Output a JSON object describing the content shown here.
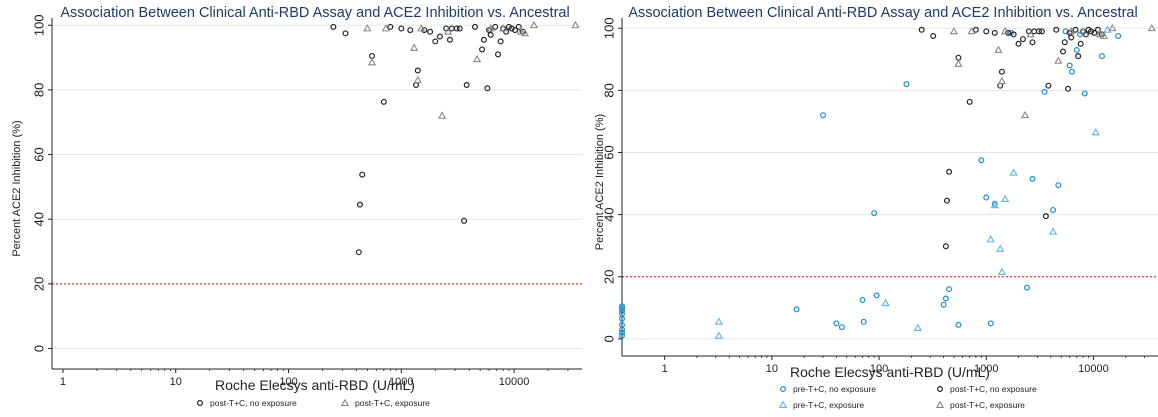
{
  "chart_data": [
    {
      "type": "scatter",
      "title": "Association Between Clinical Anti-RBD Assay and ACE2 Inhibition vs. Ancestral",
      "xlabel": "Roche Elecsys anti-RBD (U/mL)",
      "ylabel": "Percent ACE2 Inhibition (%)",
      "x_scale": "log",
      "xlim": [
        0.8,
        40000
      ],
      "ylim": [
        -2,
        101
      ],
      "x_ticks": [
        "1",
        "10",
        "100",
        "1000",
        "10000"
      ],
      "x_tick_values": [
        1,
        10,
        100,
        1000,
        10000
      ],
      "y_ticks": [
        "0",
        "20",
        "40",
        "60",
        "80",
        "100"
      ],
      "y_tick_values": [
        0,
        20,
        40,
        60,
        80,
        100
      ],
      "reference_line": {
        "y": 20,
        "color": "#e06060"
      },
      "grid": "horizontal",
      "legend": "bottom",
      "series": [
        {
          "name": "post-T+C, no exposure",
          "marker": "circle",
          "color": "#222222",
          "points": [
            [
              250,
              99.5
            ],
            [
              320,
              97.5
            ],
            [
              420,
              29.8
            ],
            [
              430,
              44.5
            ],
            [
              450,
              53.8
            ],
            [
              550,
              90.5
            ],
            [
              700,
              76.3
            ],
            [
              800,
              99.5
            ],
            [
              1000,
              99
            ],
            [
              1200,
              98.5
            ],
            [
              1350,
              81.5
            ],
            [
              1400,
              86
            ],
            [
              1600,
              98.5
            ],
            [
              1800,
              98
            ],
            [
              2000,
              95
            ],
            [
              2200,
              96.5
            ],
            [
              2500,
              99
            ],
            [
              2700,
              95.5
            ],
            [
              2800,
              99
            ],
            [
              3100,
              99
            ],
            [
              3300,
              99
            ],
            [
              3600,
              39.5
            ],
            [
              3800,
              81.5
            ],
            [
              4500,
              99.5
            ],
            [
              5200,
              92.5
            ],
            [
              5400,
              95.5
            ],
            [
              5800,
              80.5
            ],
            [
              6000,
              98.5
            ],
            [
              6200,
              97
            ],
            [
              6800,
              99.5
            ],
            [
              7200,
              91
            ],
            [
              7600,
              95
            ],
            [
              8000,
              99
            ],
            [
              8500,
              98
            ],
            [
              9000,
              99.5
            ],
            [
              9500,
              99
            ],
            [
              10200,
              98.5
            ],
            [
              11000,
              99.5
            ],
            [
              12000,
              98
            ]
          ]
        },
        {
          "name": "post-T+C, exposure",
          "marker": "triangle",
          "color": "#888888",
          "points": [
            [
              500,
              99
            ],
            [
              550,
              88.5
            ],
            [
              730,
              99
            ],
            [
              1300,
              93
            ],
            [
              1400,
              83
            ],
            [
              1500,
              99
            ],
            [
              2300,
              72
            ],
            [
              2600,
              98
            ],
            [
              4700,
              89.5
            ],
            [
              6200,
              99
            ],
            [
              8000,
              99
            ],
            [
              11500,
              98
            ],
            [
              12500,
              97.5
            ],
            [
              15000,
              100
            ],
            [
              35000,
              100
            ]
          ]
        }
      ],
      "legend_entries": [
        "post-T+C, no exposure",
        "post-T+C, exposure"
      ]
    },
    {
      "type": "scatter",
      "title": "Association Between Clinical Anti-RBD Assay and ACE2 Inhibition vs. Ancestral",
      "xlabel": "Roche Elecsys anti-RBD (U/mL)",
      "ylabel": "Percent ACE2 Inhibition (%)",
      "x_scale": "log",
      "xlim": [
        0.4,
        40000
      ],
      "ylim": [
        -1,
        102
      ],
      "x_ticks": [
        "1",
        "10",
        "100",
        "1000",
        "10000"
      ],
      "x_tick_values": [
        1,
        10,
        100,
        1000,
        10000
      ],
      "y_ticks": [
        "0",
        "20",
        "40",
        "60",
        "80",
        "100"
      ],
      "y_tick_values": [
        0,
        20,
        40,
        60,
        80,
        100
      ],
      "reference_line": {
        "y": 20,
        "color": "#e06060"
      },
      "grid": "horizontal",
      "legend": "bottom",
      "series": [
        {
          "name": "pre-T+C, no exposure",
          "marker": "circle",
          "color": "#1a8fd8",
          "points": [
            [
              0.4,
              10.5
            ],
            [
              0.4,
              9.8
            ],
            [
              0.4,
              9
            ],
            [
              0.4,
              8
            ],
            [
              0.4,
              6.5
            ],
            [
              0.4,
              4.5
            ],
            [
              0.4,
              3
            ],
            [
              0.4,
              2
            ],
            [
              0.4,
              1
            ],
            [
              17,
              9.5
            ],
            [
              30,
              72
            ],
            [
              40,
              5
            ],
            [
              45,
              3.8
            ],
            [
              70,
              12.5
            ],
            [
              72,
              5.5
            ],
            [
              90,
              40.5
            ],
            [
              95,
              14
            ],
            [
              180,
              82
            ],
            [
              400,
              11
            ],
            [
              420,
              13
            ],
            [
              450,
              16
            ],
            [
              550,
              4.5
            ],
            [
              900,
              57.5
            ],
            [
              1000,
              45.5
            ],
            [
              1100,
              5
            ],
            [
              1200,
              43.5
            ],
            [
              1700,
              98.5
            ],
            [
              2400,
              16.5
            ],
            [
              2700,
              51.5
            ],
            [
              3500,
              79.5
            ],
            [
              4200,
              41.5
            ],
            [
              4700,
              49.5
            ],
            [
              5500,
              99
            ],
            [
              6000,
              88
            ],
            [
              6300,
              86
            ],
            [
              7000,
              93
            ],
            [
              7500,
              98
            ],
            [
              8300,
              79
            ],
            [
              12000,
              91
            ],
            [
              17000,
              97.5
            ]
          ]
        },
        {
          "name": "post-T+C, no exposure",
          "marker": "circle",
          "color": "#222222",
          "points": [
            [
              250,
              99.5
            ],
            [
              320,
              97.5
            ],
            [
              420,
              29.8
            ],
            [
              430,
              44.5
            ],
            [
              450,
              53.8
            ],
            [
              550,
              90.5
            ],
            [
              700,
              76.3
            ],
            [
              800,
              99.5
            ],
            [
              1000,
              99
            ],
            [
              1200,
              98.5
            ],
            [
              1350,
              81.5
            ],
            [
              1400,
              86
            ],
            [
              1600,
              98.5
            ],
            [
              1800,
              98
            ],
            [
              2000,
              95
            ],
            [
              2200,
              96.5
            ],
            [
              2500,
              99
            ],
            [
              2700,
              95.5
            ],
            [
              2800,
              99
            ],
            [
              3100,
              99
            ],
            [
              3300,
              99
            ],
            [
              3600,
              39.5
            ],
            [
              3800,
              81.5
            ],
            [
              4500,
              99.5
            ],
            [
              5200,
              92.5
            ],
            [
              5400,
              95.5
            ],
            [
              5800,
              80.5
            ],
            [
              6000,
              98.5
            ],
            [
              6200,
              97
            ],
            [
              6800,
              99.5
            ],
            [
              7200,
              91
            ],
            [
              7600,
              95
            ],
            [
              8000,
              99
            ],
            [
              8500,
              98
            ],
            [
              9000,
              99.5
            ],
            [
              9500,
              99
            ],
            [
              10200,
              98.5
            ],
            [
              11000,
              99.5
            ],
            [
              12000,
              98
            ]
          ]
        },
        {
          "name": "pre-T+C, exposure",
          "marker": "triangle",
          "color": "#5ab4ea",
          "points": [
            [
              3.2,
              5.5
            ],
            [
              3.2,
              1
            ],
            [
              115,
              11.5
            ],
            [
              230,
              3.5
            ],
            [
              1100,
              32
            ],
            [
              1200,
              43
            ],
            [
              1350,
              29
            ],
            [
              1400,
              21.5
            ],
            [
              1500,
              45
            ],
            [
              1800,
              53.5
            ],
            [
              4200,
              34.5
            ],
            [
              10500,
              66.5
            ],
            [
              13500,
              99.5
            ]
          ]
        },
        {
          "name": "post-T+C, exposure",
          "marker": "triangle",
          "color": "#888888",
          "points": [
            [
              500,
              99
            ],
            [
              550,
              88.5
            ],
            [
              730,
              99
            ],
            [
              1300,
              93
            ],
            [
              1400,
              83
            ],
            [
              1500,
              99
            ],
            [
              2300,
              72
            ],
            [
              2600,
              98
            ],
            [
              4700,
              89.5
            ],
            [
              6200,
              99
            ],
            [
              8000,
              99
            ],
            [
              11500,
              98
            ],
            [
              12500,
              97.5
            ],
            [
              15000,
              100
            ],
            [
              35000,
              100
            ]
          ]
        }
      ],
      "legend_entries": [
        "pre-T+C, no exposure",
        "post-T+C, no exposure",
        "pre-T+C, exposure",
        "post-T+C, exposure"
      ]
    }
  ]
}
